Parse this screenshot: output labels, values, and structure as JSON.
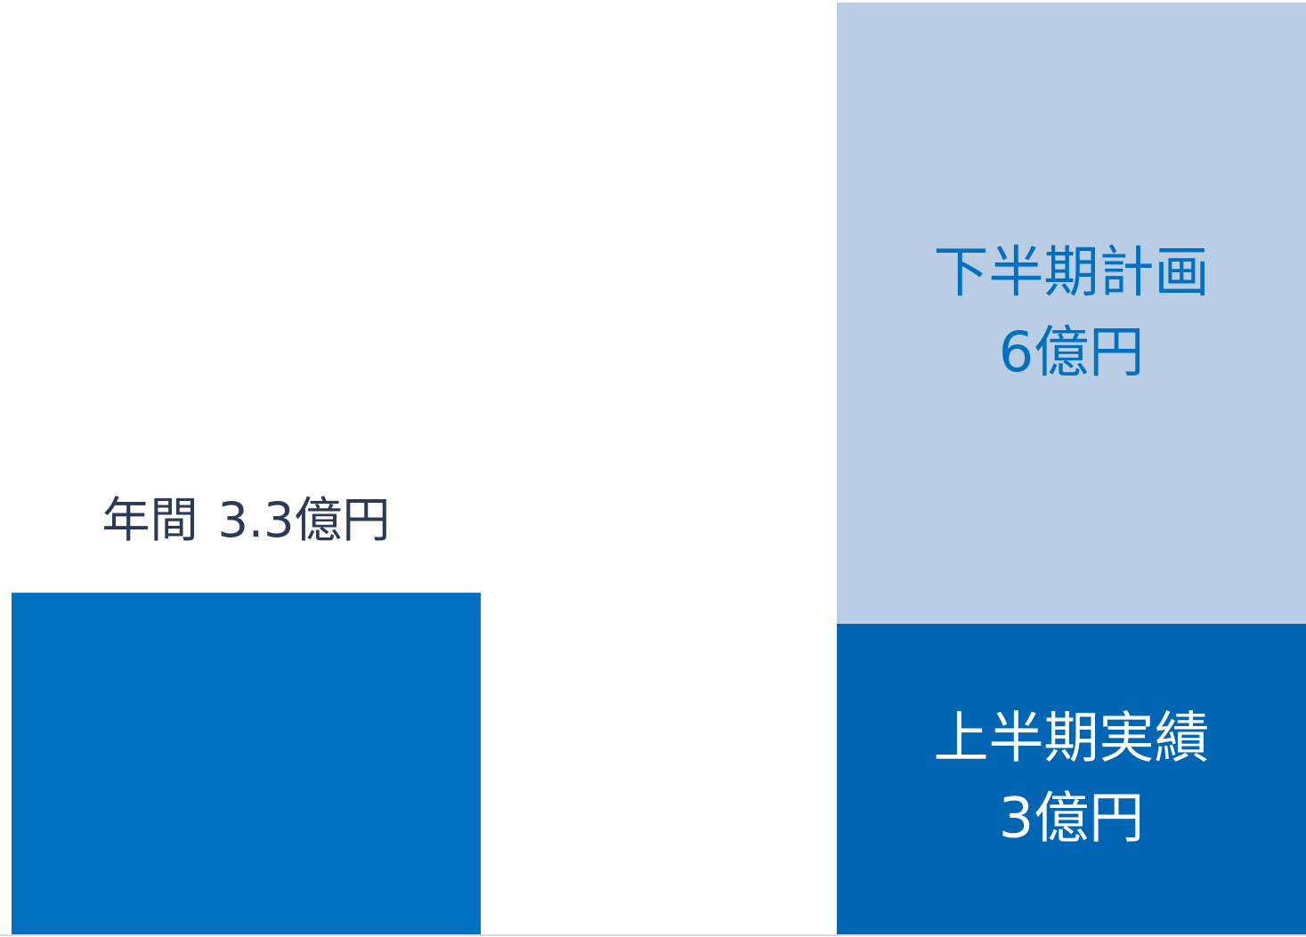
{
  "chart_data": {
    "type": "stacked_bar",
    "categories": [
      null,
      null
    ],
    "series": [
      {
        "name": "年間",
        "color": "#0070c0",
        "values": [
          3.3,
          null
        ],
        "value_labels": [
          "3.3億円",
          null
        ]
      },
      {
        "name": "上半期実績",
        "color": "#0066b3",
        "values": [
          null,
          3
        ],
        "value_labels": [
          null,
          "3億円"
        ]
      },
      {
        "name": "下半期計画",
        "color": "#b9cde5",
        "values": [
          null,
          6
        ],
        "value_labels": [
          null,
          "6億円"
        ]
      }
    ],
    "ylim": [
      0,
      9
    ]
  }
}
